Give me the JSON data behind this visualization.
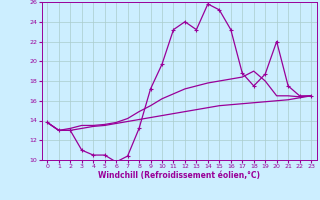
{
  "title": "",
  "xlabel": "Windchill (Refroidissement éolien,°C)",
  "bg_color": "#cceeff",
  "line_color": "#990099",
  "grid_color": "#aacccc",
  "xlim": [
    -0.5,
    23.5
  ],
  "ylim": [
    10,
    26
  ],
  "xticks": [
    0,
    1,
    2,
    3,
    4,
    5,
    6,
    7,
    8,
    9,
    10,
    11,
    12,
    13,
    14,
    15,
    16,
    17,
    18,
    19,
    20,
    21,
    22,
    23
  ],
  "yticks": [
    10,
    12,
    14,
    16,
    18,
    20,
    22,
    24,
    26
  ],
  "series1_x": [
    0,
    1,
    2,
    3,
    4,
    5,
    6,
    7,
    8,
    9,
    10,
    11,
    12,
    13,
    14,
    15,
    16,
    17,
    18,
    19,
    20,
    21,
    22,
    23
  ],
  "series1_y": [
    13.8,
    13.0,
    13.0,
    11.0,
    10.5,
    10.5,
    9.8,
    10.4,
    13.2,
    17.2,
    19.7,
    23.2,
    24.0,
    23.2,
    25.8,
    25.2,
    23.2,
    18.8,
    17.5,
    18.7,
    22.0,
    17.5,
    16.5,
    16.5
  ],
  "series2_x": [
    0,
    1,
    2,
    3,
    4,
    5,
    6,
    7,
    8,
    9,
    10,
    11,
    12,
    13,
    14,
    15,
    16,
    17,
    18,
    19,
    20,
    21,
    22,
    23
  ],
  "series2_y": [
    13.8,
    13.0,
    13.0,
    13.2,
    13.4,
    13.5,
    13.7,
    13.9,
    14.1,
    14.3,
    14.5,
    14.7,
    14.9,
    15.1,
    15.3,
    15.5,
    15.6,
    15.7,
    15.8,
    15.9,
    16.0,
    16.1,
    16.3,
    16.5
  ],
  "series3_x": [
    0,
    1,
    2,
    3,
    4,
    5,
    6,
    7,
    8,
    9,
    10,
    11,
    12,
    13,
    14,
    15,
    16,
    17,
    18,
    19,
    20,
    21,
    22,
    23
  ],
  "series3_y": [
    13.8,
    13.0,
    13.2,
    13.5,
    13.5,
    13.6,
    13.8,
    14.2,
    14.9,
    15.5,
    16.2,
    16.7,
    17.2,
    17.5,
    17.8,
    18.0,
    18.2,
    18.4,
    19.0,
    18.0,
    16.5,
    16.5,
    16.4,
    16.5
  ]
}
